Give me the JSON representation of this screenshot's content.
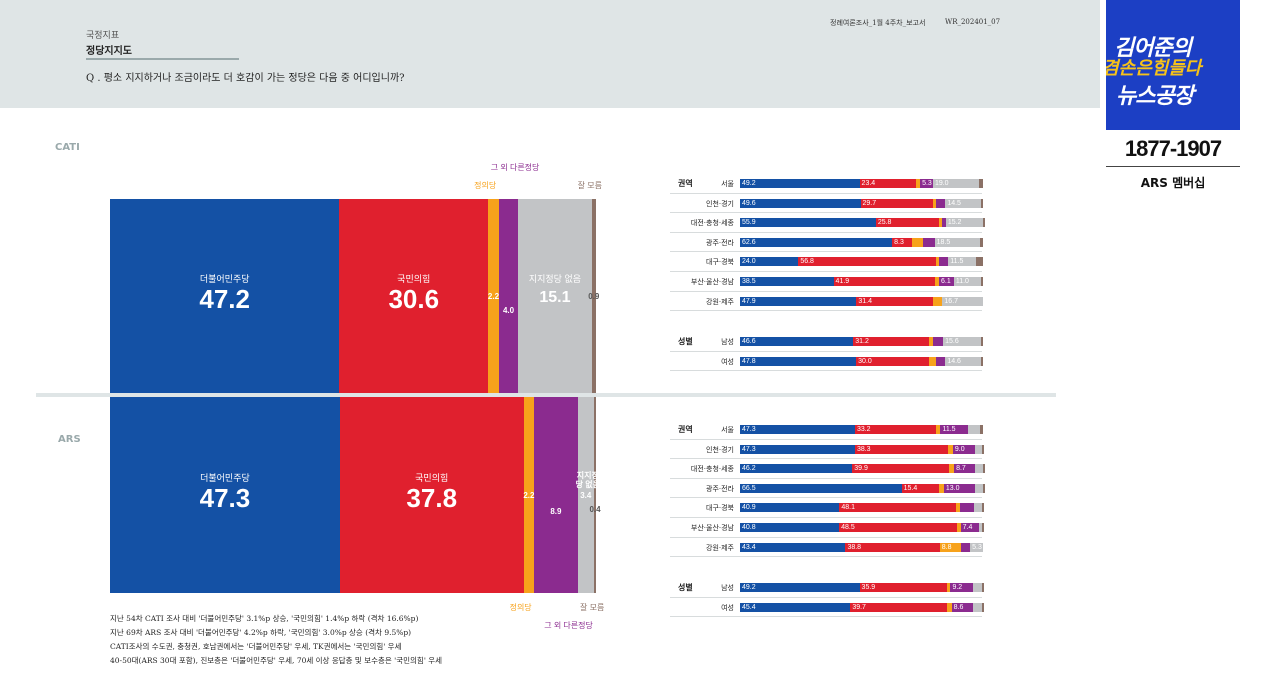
{
  "header": {
    "category": "국정지표",
    "subtitle": "정당지지도",
    "question": "Q . 평소 지지하거나 조금이라도 더 호감이 가는 정당은 다음 중 어디입니까?",
    "doc_title": "정례여론조사_1월 4주차_보고서",
    "doc_code": "WR_202401_07"
  },
  "logo": {
    "line1": "김어준의",
    "line2": "겸손은힘들다",
    "line3": "뉴스공장",
    "phone": "1877-1907",
    "sub": "ARS 멤버십"
  },
  "colors": {
    "dem": "#1451a5",
    "ppp": "#e0202e",
    "justice": "#f7a21b",
    "other": "#8b2b8f",
    "none": "#c2c4c6",
    "dk": "#8b7166"
  },
  "sections": {
    "cati": {
      "label": "CATI"
    },
    "ars": {
      "label": "ARS"
    }
  },
  "chart_data": [
    {
      "type": "bar",
      "title": "CATI 정당지지도",
      "orientation": "stacked-horizontal-100",
      "categories": [
        "더불어민주당",
        "국민의힘",
        "정의당",
        "그 외 다른정당",
        "지지정당 없음",
        "잘 모름"
      ],
      "values": [
        47.2,
        30.6,
        2.2,
        4.0,
        15.1,
        0.9
      ],
      "callouts": {
        "justice": "정의당",
        "other": "그 외 다른정당",
        "dk": "잘 모름"
      }
    },
    {
      "type": "bar",
      "title": "ARS 정당지지도",
      "orientation": "stacked-horizontal-100",
      "categories": [
        "더불어민주당",
        "국민의힘",
        "정의당",
        "그 외 다른정당",
        "지지정당 없음",
        "잘 모름"
      ],
      "values": [
        47.3,
        37.8,
        2.2,
        8.9,
        3.4,
        0.4
      ],
      "callouts": {
        "justice": "정의당",
        "other": "그 외 다른정당",
        "dk": "잘 모름"
      }
    },
    {
      "type": "bar",
      "title": "CATI 권역별",
      "group": "권역",
      "series_names": [
        "더불어민주당",
        "국민의힘",
        "정의당",
        "그 외 다른정당",
        "지지정당 없음",
        "잘 모름"
      ],
      "rows": [
        {
          "label": "서울",
          "values": [
            49.2,
            23.4,
            1.5,
            5.3,
            19.0,
            1.6
          ],
          "shown": [
            "49.2",
            "23.4",
            "",
            "5.3",
            "19.0",
            ""
          ]
        },
        {
          "label": "인천·경기",
          "values": [
            49.6,
            29.7,
            1.5,
            3.7,
            14.5,
            1.0
          ],
          "shown": [
            "49.6",
            "29.7",
            "",
            "",
            "14.5",
            ""
          ]
        },
        {
          "label": "대전·충청·세종",
          "values": [
            55.9,
            25.8,
            1.5,
            1.5,
            15.2,
            0.1
          ],
          "shown": [
            "55.9",
            "25.8",
            "",
            "",
            "15.2",
            ""
          ]
        },
        {
          "label": "광주·전라",
          "values": [
            62.6,
            8.3,
            4.5,
            4.7,
            18.5,
            1.4
          ],
          "shown": [
            "62.6",
            "8.3",
            "",
            "",
            "18.5",
            ""
          ]
        },
        {
          "label": "대구·경북",
          "values": [
            24.0,
            56.8,
            1.0,
            3.9,
            11.5,
            2.8
          ],
          "shown": [
            "24.0",
            "56.8",
            "",
            "",
            "11.5",
            ""
          ]
        },
        {
          "label": "부산·울산·경남",
          "values": [
            38.5,
            41.9,
            1.5,
            6.1,
            11.0,
            1.0
          ],
          "shown": [
            "38.5",
            "41.9",
            "",
            "6.1",
            "11.0",
            ""
          ]
        },
        {
          "label": "강원·제주",
          "values": [
            47.9,
            31.4,
            4.0,
            0.0,
            16.7,
            0.0
          ],
          "shown": [
            "47.9",
            "31.4",
            "",
            "",
            "16.7",
            ""
          ]
        }
      ]
    },
    {
      "type": "bar",
      "title": "CATI 성별",
      "group": "성별",
      "rows": [
        {
          "label": "남성",
          "values": [
            46.6,
            31.2,
            1.5,
            4.3,
            15.6,
            0.8
          ],
          "shown": [
            "46.6",
            "31.2",
            "",
            "",
            "15.6",
            ""
          ]
        },
        {
          "label": "여성",
          "values": [
            47.8,
            30.0,
            3.0,
            3.7,
            14.6,
            0.9
          ],
          "shown": [
            "47.8",
            "30.0",
            "",
            "",
            "14.6",
            ""
          ]
        }
      ]
    },
    {
      "type": "bar",
      "title": "ARS 권역별",
      "group": "권역",
      "rows": [
        {
          "label": "서울",
          "values": [
            47.3,
            33.2,
            2.0,
            11.5,
            4.8,
            1.2
          ],
          "shown": [
            "47.3",
            "33.2",
            "",
            "11.5",
            "",
            ""
          ]
        },
        {
          "label": "인천·경기",
          "values": [
            47.3,
            38.3,
            2.0,
            9.0,
            3.0,
            0.4
          ],
          "shown": [
            "47.3",
            "38.3",
            "",
            "9.0",
            "",
            ""
          ]
        },
        {
          "label": "대전·충청·세종",
          "values": [
            46.2,
            39.9,
            2.0,
            8.7,
            3.0,
            0.2
          ],
          "shown": [
            "46.2",
            "39.9",
            "",
            "8.7",
            "",
            ""
          ]
        },
        {
          "label": "광주·전라",
          "values": [
            66.5,
            15.4,
            2.0,
            13.0,
            3.0,
            0.1
          ],
          "shown": [
            "66.5",
            "15.4",
            "",
            "13.0",
            "",
            ""
          ]
        },
        {
          "label": "대구·경북",
          "values": [
            40.9,
            48.1,
            1.5,
            6.0,
            3.0,
            0.5
          ],
          "shown": [
            "40.9",
            "48.1",
            "",
            "",
            "",
            ""
          ]
        },
        {
          "label": "부산·울산·경남",
          "values": [
            40.8,
            48.5,
            1.5,
            7.4,
            1.5,
            0.3
          ],
          "shown": [
            "40.8",
            "48.5",
            "",
            "7.4",
            "",
            ""
          ]
        },
        {
          "label": "강원·제주",
          "values": [
            43.4,
            38.8,
            8.8,
            3.7,
            5.3,
            0.0
          ],
          "shown": [
            "43.4",
            "38.8",
            "8.8",
            "",
            "5.3",
            ""
          ]
        }
      ]
    },
    {
      "type": "bar",
      "title": "ARS 성별",
      "group": "성별",
      "rows": [
        {
          "label": "남성",
          "values": [
            49.2,
            35.9,
            1.5,
            9.2,
            3.7,
            0.5
          ],
          "shown": [
            "49.2",
            "35.9",
            "",
            "9.2",
            "",
            ""
          ]
        },
        {
          "label": "여성",
          "values": [
            45.4,
            39.7,
            2.0,
            8.6,
            3.9,
            0.4
          ],
          "shown": [
            "45.4",
            "39.7",
            "",
            "8.6",
            "",
            ""
          ]
        }
      ]
    }
  ],
  "notes": [
    "지난 54차 CATI 조사 대비 '더불어민주당' 3.1%p 상승, '국민의힘' 1.4%p 하락 (격차 16.6%p)",
    "지난 69차 ARS 조사 대비 '더불어민주당' 4.2%p 하락, '국민의힘' 3.0%p 상승 (격차 9.5%p)",
    "CATI조사의 수도권, 충청권, 호남권에서는 '더불어민주당' 우세, TK권에서는 '국민의힘' 우세",
    "40-50대(ARS 30대 포함), 진보층은 '더불어민주당' 우세, 70세 이상 응답층 및 보수층은 '국민의힘' 우세"
  ]
}
